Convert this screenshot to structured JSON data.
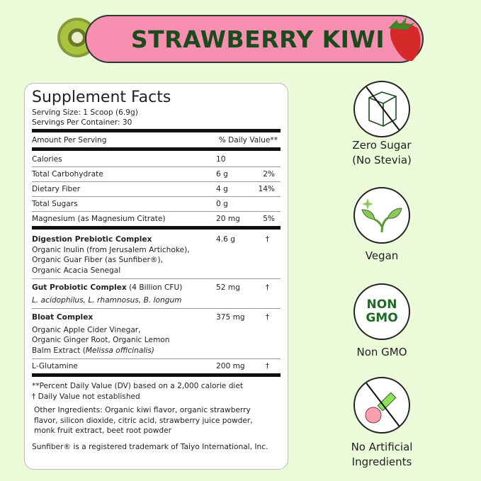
{
  "banner": {
    "title": "STRAWBERRY KIWI",
    "colors": {
      "pink": "#f68fb0",
      "green": "#1b4a1c",
      "background": "#ebfad8"
    }
  },
  "facts": {
    "title": "Supplement Facts",
    "serving_size": "Serving Size: 1 Scoop (6.9g)",
    "servings_per_container": "Servings Per Container: 30",
    "amount_header": "Amount Per Serving",
    "dv_header": "% Daily Value**",
    "nutrients": [
      {
        "name": "Calories",
        "amount": "10",
        "dv": ""
      },
      {
        "name": "Total Carbohydrate",
        "amount": "6 g",
        "dv": "2%"
      },
      {
        "name": "Dietary Fiber",
        "amount": "4 g",
        "dv": "14%"
      },
      {
        "name": "Total Sugars",
        "amount": "0 g",
        "dv": ""
      },
      {
        "name": "Magnesium (as Magnesium Citrate)",
        "amount": "20 mg",
        "dv": "5%"
      }
    ],
    "blends": [
      {
        "name": "Digestion Prebiotic Complex",
        "extra": "",
        "amount": "4.6 g",
        "dv": "†",
        "lines": [
          "Organic Inulin (from Jerusalem Artichoke),",
          "Organic Guar Fiber (as Sunfiber®),",
          "Organic Acacia Senegal"
        ]
      },
      {
        "name": "Gut Probiotic Complex",
        "extra": " (4 Billion CFU)",
        "amount": "52 mg",
        "dv": "†",
        "italic": "L. acidophilus, L. rhamnosus, B. longum"
      },
      {
        "name": "Bloat Complex",
        "extra": "",
        "amount": "375 mg",
        "dv": "†",
        "lines": [
          "Organic Apple Cider Vinegar,",
          "Organic Ginger Root, Organic Lemon"
        ],
        "last_line": "Balm Extract (",
        "last_italic": "Melissa officinalis)"
      }
    ],
    "glutamine": {
      "name": "L-Glutamine",
      "amount": "200 mg",
      "dv": "†"
    },
    "footnote1": "**Percent Daily Value (DV) based on a 2,000 calorie diet",
    "footnote2": "† Daily Value not established",
    "other_ingredients": [
      "Other Ingredients:  Organic kiwi flavor, organic strawberry",
      "flavor, silicon dioxide, citric acid, strawberry juice powder,",
      "monk fruit extract, beet root powder"
    ],
    "trademark": "Sunfiber® is a registered trademark of Taiyo International, Inc."
  },
  "badges": [
    {
      "icon": "no-sugar-cube-icon",
      "lines": [
        "Zero Sugar",
        "(No Stevia)"
      ]
    },
    {
      "icon": "sprout-icon",
      "lines": [
        "Vegan"
      ]
    },
    {
      "icon": "non-gmo-icon",
      "icon_text": [
        "NON",
        "GMO"
      ],
      "lines": [
        "Non GMO"
      ]
    },
    {
      "icon": "no-artificial-icon",
      "lines": [
        "No Artificial",
        "Ingredients"
      ]
    }
  ]
}
